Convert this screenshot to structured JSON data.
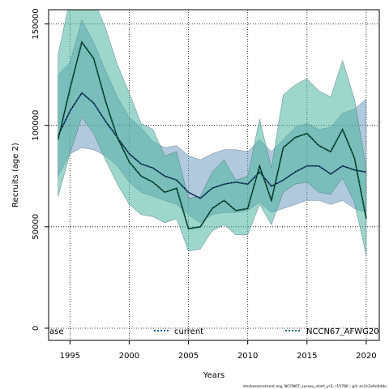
{
  "chart_data": {
    "type": "area",
    "xlabel": "Years",
    "ylabel": "Recruits (age 2)",
    "xlim": [
      1993.2,
      2021.1
    ],
    "ylim": [
      -6000,
      157000
    ],
    "x_ticks": [
      1995,
      2000,
      2005,
      2010,
      2015,
      2020
    ],
    "x_tick_labels": [
      "1995",
      "2000",
      "2005",
      "2010",
      "2015",
      "2020"
    ],
    "y_ticks": [
      0,
      50000,
      100000,
      150000
    ],
    "y_tick_labels": [
      "0",
      "50000",
      "100000",
      "150000"
    ],
    "grid": true,
    "legend": {
      "placement": "bottom",
      "entries": [
        {
          "label": "ase",
          "style": "none"
        },
        {
          "label": "current",
          "color": "#1f5a8c",
          "style": "dotted"
        },
        {
          "label": "NCCN67_AFWG20",
          "color": "#0a6b4c",
          "style": "dotted"
        }
      ]
    },
    "years": [
      1994,
      1995,
      1996,
      1997,
      1998,
      1999,
      2000,
      2001,
      2002,
      2003,
      2004,
      2005,
      2006,
      2007,
      2008,
      2009,
      2010,
      2011,
      2012,
      2013,
      2014,
      2015,
      2016,
      2017,
      2018,
      2019,
      2020
    ],
    "series": [
      {
        "name": "current",
        "color": "#1f5a8c",
        "band_color": "#6f9dc0",
        "values": [
          95000,
          107000,
          116000,
          111000,
          102000,
          94000,
          86000,
          81000,
          79000,
          75000,
          73000,
          67000,
          64000,
          69000,
          71000,
          72000,
          71000,
          77000,
          70000,
          73000,
          77000,
          80000,
          80000,
          76000,
          80000,
          78000,
          77000
        ],
        "upper": [
          125000,
          131000,
          152000,
          141000,
          127000,
          114000,
          104000,
          99000,
          92000,
          89000,
          90000,
          85000,
          83000,
          86000,
          88000,
          88000,
          87000,
          93000,
          87000,
          93000,
          99000,
          101000,
          98000,
          99000,
          106000,
          108000,
          113000
        ],
        "lower": [
          75000,
          86000,
          89000,
          88000,
          85000,
          80000,
          72000,
          67000,
          65000,
          63000,
          61000,
          56000,
          52000,
          56000,
          57000,
          57000,
          58000,
          62000,
          57000,
          59000,
          61000,
          63000,
          63000,
          61000,
          63000,
          59000,
          57000
        ]
      },
      {
        "name": "NCCN67_AFWG20",
        "color": "#0a6b4c",
        "band_color": "#4db59f",
        "values": [
          93000,
          118000,
          141000,
          133000,
          112000,
          94000,
          82000,
          75000,
          72000,
          67000,
          69000,
          49000,
          50000,
          59000,
          63000,
          58000,
          59000,
          80000,
          63000,
          89000,
          94000,
          96000,
          90000,
          87000,
          98000,
          84000,
          54000
        ],
        "upper": [
          135000,
          162000,
          165000,
          162000,
          148000,
          130000,
          116000,
          101000,
          98000,
          85000,
          87000,
          64000,
          65000,
          77000,
          83000,
          73000,
          75000,
          103000,
          79000,
          115000,
          120000,
          123000,
          117000,
          114000,
          132000,
          113000,
          79000
        ],
        "lower": [
          65000,
          86000,
          104000,
          96000,
          83000,
          71000,
          61000,
          56000,
          55000,
          52000,
          54000,
          38000,
          39000,
          48000,
          51000,
          46000,
          46000,
          61000,
          51000,
          67000,
          71000,
          72000,
          67000,
          66000,
          74000,
          62000,
          36000
        ]
      }
    ],
    "footnote": "stockassessment.org, NCCN67_survey_start_yr3, r15786 ; git: ec2c2a0c6dde"
  }
}
